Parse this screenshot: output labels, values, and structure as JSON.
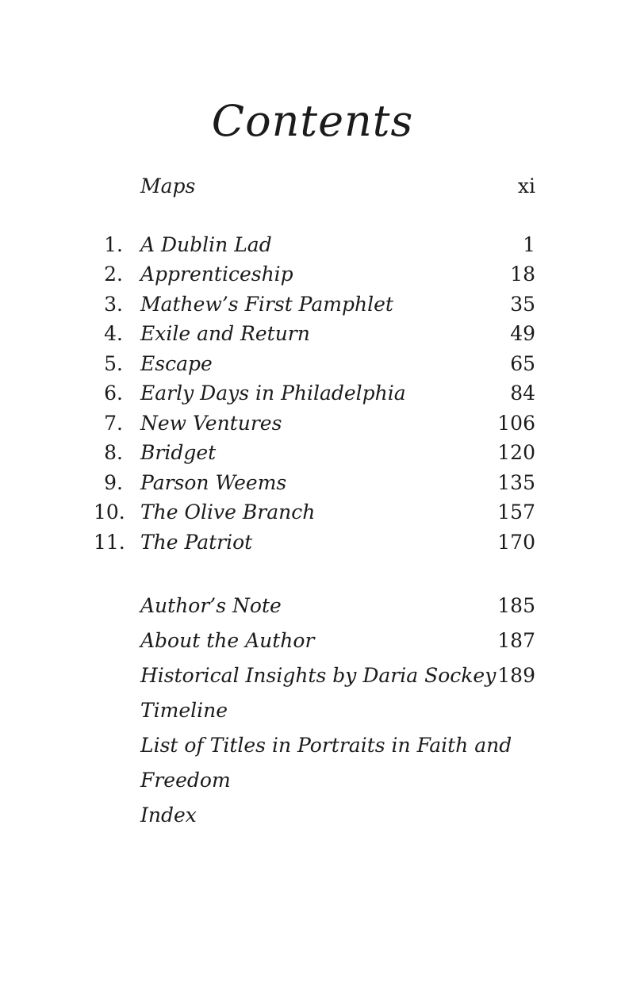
{
  "title": "Contents",
  "front_matter": [
    {
      "title": "Maps",
      "page": "xi"
    }
  ],
  "chapters": [
    {
      "num": "1.",
      "title": "A Dublin Lad",
      "page": "1"
    },
    {
      "num": "2.",
      "title": "Apprenticeship",
      "page": "18"
    },
    {
      "num": "3.",
      "title": "Mathew’s First Pamphlet",
      "page": "35"
    },
    {
      "num": "4.",
      "title": "Exile and Return",
      "page": "49"
    },
    {
      "num": "5.",
      "title": "Escape",
      "page": "65"
    },
    {
      "num": "6.",
      "title": "Early Days in Philadelphia",
      "page": "84"
    },
    {
      "num": "7.",
      "title": "New Ventures",
      "page": "106"
    },
    {
      "num": "8.",
      "title": "Bridget",
      "page": "120"
    },
    {
      "num": "9.",
      "title": "Parson Weems",
      "page": "135"
    },
    {
      "num": "10.",
      "title": "The Olive Branch",
      "page": "157"
    },
    {
      "num": "11.",
      "title": "The Patriot",
      "page": "170"
    }
  ],
  "back_matter": [
    {
      "title": "Author’s Note",
      "page": "185"
    },
    {
      "title": "About the Author",
      "page": "187"
    },
    {
      "title": "Historical Insights by Daria Sockey",
      "page": "189"
    },
    {
      "title": "Timeline",
      "page": ""
    },
    {
      "title": "List of Titles in Portraits in Faith and Freedom",
      "page": ""
    },
    {
      "title": "Index",
      "page": ""
    }
  ],
  "colors": {
    "background": "#ffffff",
    "text": "#1b1b1b"
  }
}
